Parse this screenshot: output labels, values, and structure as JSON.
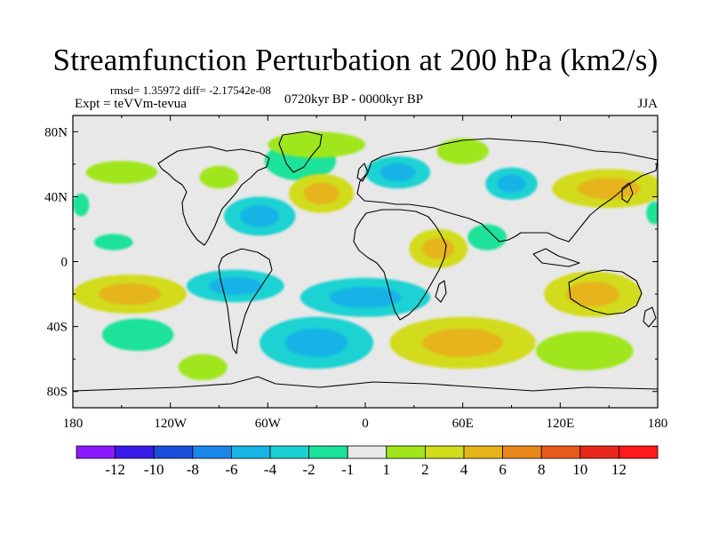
{
  "title": "Streamfunction Perturbation at 200 hPa (km2/s)",
  "rmsd_line": "rmsd= 1.35972 diff= -2.17542e-08",
  "center_subtitle": "0720kyr BP - 0000kyr BP",
  "expt_line": "Expt = teVVm-tevua",
  "season": "JJA",
  "chart_data": {
    "type": "heatmap",
    "projection": "cylindrical equidistant",
    "xlim": [
      -180,
      180
    ],
    "ylim": [
      -90,
      90
    ],
    "x_ticks": [
      {
        "value": -180,
        "label": "180"
      },
      {
        "value": -120,
        "label": "120W"
      },
      {
        "value": -60,
        "label": "60W"
      },
      {
        "value": 0,
        "label": "0"
      },
      {
        "value": 60,
        "label": "60E"
      },
      {
        "value": 120,
        "label": "120E"
      },
      {
        "value": 180,
        "label": "180"
      }
    ],
    "y_ticks": [
      {
        "value": 80,
        "label": "80N"
      },
      {
        "value": 40,
        "label": "40N"
      },
      {
        "value": 0,
        "label": "0"
      },
      {
        "value": -40,
        "label": "40S"
      },
      {
        "value": -80,
        "label": "80S"
      }
    ],
    "colorbar": {
      "labels": [
        "-12",
        "-10",
        "-8",
        "-6",
        "-4",
        "-2",
        "-1",
        "1",
        "2",
        "4",
        "6",
        "8",
        "10",
        "12"
      ],
      "colors": [
        "#8c1aff",
        "#3a1ae8",
        "#1a4fdc",
        "#1a86e8",
        "#18b4e6",
        "#1ad2d2",
        "#1ae29a",
        "#e8e8e8",
        "#a0e61a",
        "#d2dc1a",
        "#e6b41a",
        "#e8881a",
        "#e85a1a",
        "#e8281a",
        "#ff1a1a"
      ]
    },
    "anomalies": [
      {
        "lon": -150,
        "lat": 55,
        "rx": 22,
        "ry": 7,
        "value": 1.5
      },
      {
        "lon": -90,
        "lat": 52,
        "rx": 12,
        "ry": 7,
        "value": 1.5
      },
      {
        "lon": -40,
        "lat": 62,
        "rx": 22,
        "ry": 12,
        "value": -1.5
      },
      {
        "lon": -65,
        "lat": 28,
        "rx": 22,
        "ry": 12,
        "value": -2.5
      },
      {
        "lon": -27,
        "lat": 42,
        "rx": 20,
        "ry": 12,
        "value": 2.5
      },
      {
        "lon": -30,
        "lat": 72,
        "rx": 30,
        "ry": 8,
        "value": 1.5
      },
      {
        "lon": 20,
        "lat": 55,
        "rx": 20,
        "ry": 10,
        "value": -2.5
      },
      {
        "lon": 60,
        "lat": 68,
        "rx": 16,
        "ry": 8,
        "value": 1.5
      },
      {
        "lon": 90,
        "lat": 48,
        "rx": 16,
        "ry": 10,
        "value": -2.5
      },
      {
        "lon": 150,
        "lat": 45,
        "rx": 35,
        "ry": 12,
        "value": 2.5
      },
      {
        "lon": 75,
        "lat": 15,
        "rx": 12,
        "ry": 8,
        "value": -1.5
      },
      {
        "lon": -155,
        "lat": 12,
        "rx": 12,
        "ry": 5,
        "value": -1.5
      },
      {
        "lon": -145,
        "lat": -20,
        "rx": 35,
        "ry": 12,
        "value": 3.5
      },
      {
        "lon": -80,
        "lat": -15,
        "rx": 30,
        "ry": 10,
        "value": -2.5
      },
      {
        "lon": 0,
        "lat": -22,
        "rx": 40,
        "ry": 12,
        "value": -2.5
      },
      {
        "lon": 45,
        "lat": 8,
        "rx": 18,
        "ry": 12,
        "value": 2.5
      },
      {
        "lon": 140,
        "lat": -20,
        "rx": 30,
        "ry": 14,
        "value": 2.5
      },
      {
        "lon": -140,
        "lat": -45,
        "rx": 22,
        "ry": 10,
        "value": -1.5
      },
      {
        "lon": -30,
        "lat": -50,
        "rx": 35,
        "ry": 16,
        "value": -2.5
      },
      {
        "lon": 60,
        "lat": -50,
        "rx": 45,
        "ry": 16,
        "value": 3.5
      },
      {
        "lon": -100,
        "lat": -65,
        "rx": 15,
        "ry": 8,
        "value": 1.5
      },
      {
        "lon": 135,
        "lat": -55,
        "rx": 30,
        "ry": 12,
        "value": 1.5
      },
      {
        "lon": -175,
        "lat": 35,
        "rx": 5,
        "ry": 7,
        "value": -1.5
      },
      {
        "lon": 178,
        "lat": 30,
        "rx": 5,
        "ry": 7,
        "value": -1.5
      }
    ]
  }
}
